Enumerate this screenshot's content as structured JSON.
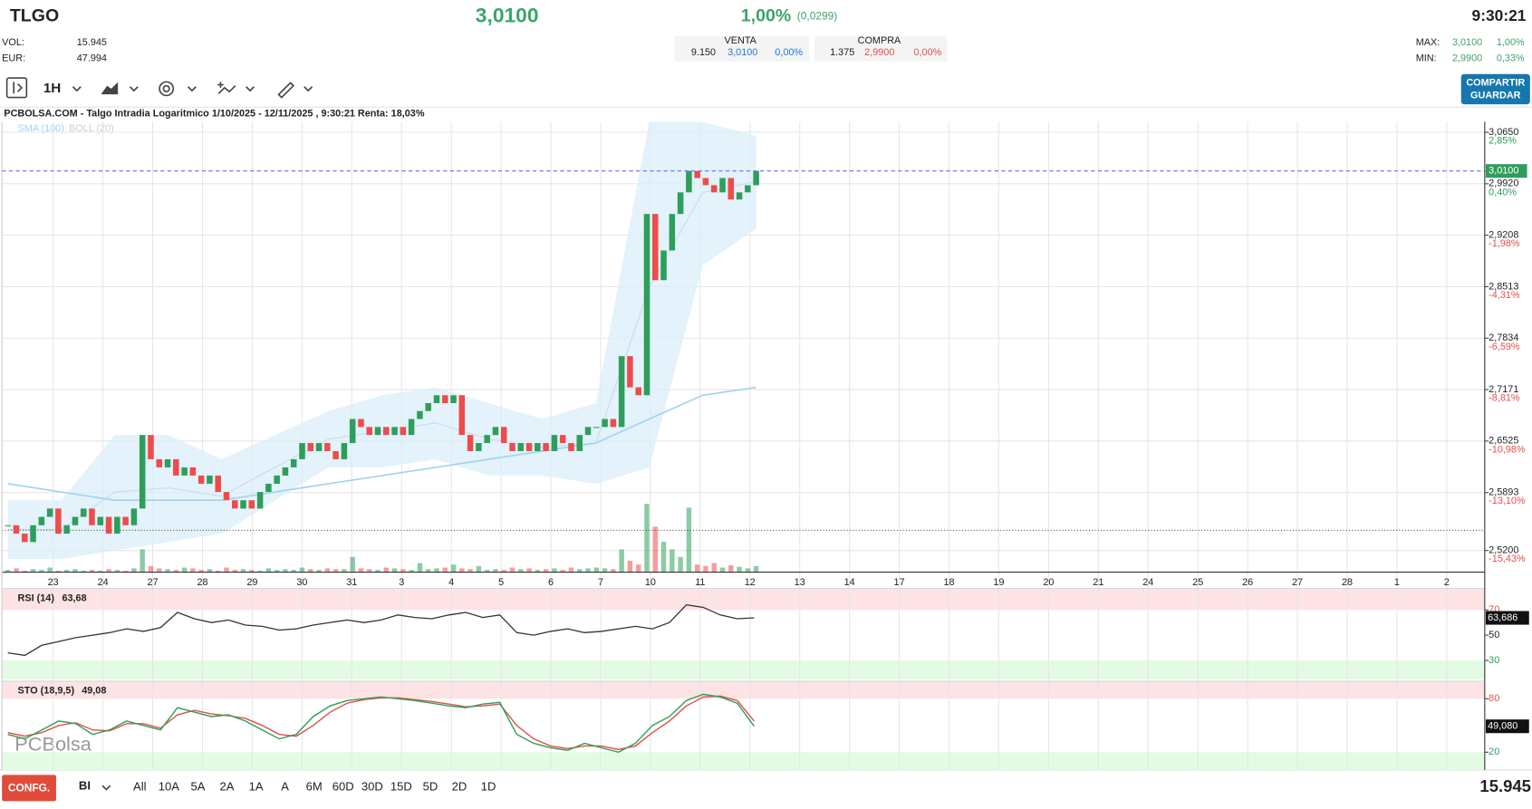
{
  "header": {
    "symbol": "TLGO",
    "price": "3,0100",
    "change_pct": "1,00%",
    "change_abs": "(0,0299)",
    "time": "9:30:21",
    "stats": [
      {
        "label": "VOL:",
        "value": "15.945"
      },
      {
        "label": "EUR:",
        "value": "47.994"
      }
    ],
    "venta": {
      "label": "VENTA",
      "volume": "9.150",
      "price": "3,0100",
      "pct": "0,00%"
    },
    "compra": {
      "label": "COMPRA",
      "volume": "1.375",
      "price": "2,9900",
      "pct": "0,00%"
    },
    "range": [
      {
        "label": "MAX:",
        "price": "3,0100",
        "pct": "1,00%"
      },
      {
        "label": "MIN:",
        "price": "2,9900",
        "pct": "0,33%"
      }
    ]
  },
  "toolbar": {
    "interval": "1H",
    "share": "COMPARTIR",
    "save": "GUARDAR"
  },
  "chart_data": {
    "type": "candlestick",
    "title": "PCBOLSA.COM - Talgo Intradia Logaritmico 1/10/2025 - 12/11/2025 , 9:30:21 Renta: 18,03%",
    "watermark": "PCBolsa",
    "legend": [
      "SMA (100)",
      "BOLL (20)"
    ],
    "up_color": "#2e9e5b",
    "down_color": "#ef4b4b",
    "sma_color": "#9fd3f0",
    "boll_color": "#d9eefa",
    "log_scale": true,
    "grid": true,
    "categories": [
      "23",
      "24",
      "27",
      "28",
      "29",
      "30",
      "31",
      "3",
      "4",
      "5",
      "6",
      "7",
      "10",
      "11",
      "12",
      "13",
      "14",
      "17",
      "18",
      "19",
      "20",
      "21",
      "24",
      "25",
      "26",
      "27",
      "28",
      "1",
      "2"
    ],
    "close": [
      2.55,
      2.54,
      2.53,
      2.55,
      2.56,
      2.57,
      2.54,
      2.55,
      2.56,
      2.57,
      2.55,
      2.56,
      2.54,
      2.56,
      2.55,
      2.57,
      2.66,
      2.63,
      2.62,
      2.63,
      2.61,
      2.62,
      2.61,
      2.6,
      2.61,
      2.59,
      2.58,
      2.57,
      2.58,
      2.57,
      2.59,
      2.6,
      2.61,
      2.62,
      2.63,
      2.65,
      2.64,
      2.65,
      2.64,
      2.63,
      2.65,
      2.68,
      2.67,
      2.66,
      2.67,
      2.66,
      2.67,
      2.66,
      2.68,
      2.69,
      2.7,
      2.71,
      2.7,
      2.71,
      2.66,
      2.64,
      2.65,
      2.66,
      2.67,
      2.65,
      2.64,
      2.65,
      2.64,
      2.65,
      2.64,
      2.66,
      2.65,
      2.64,
      2.66,
      2.67,
      2.67,
      2.68,
      2.67,
      2.76,
      2.72,
      2.71,
      2.95,
      2.86,
      2.9,
      2.95,
      2.98,
      3.01,
      3.0,
      2.99,
      2.98,
      3.0,
      2.97,
      2.98,
      2.99,
      3.01
    ],
    "volume": [
      3,
      5,
      2,
      4,
      3,
      6,
      2,
      3,
      4,
      2,
      3,
      2,
      4,
      3,
      2,
      5,
      30,
      8,
      5,
      4,
      3,
      6,
      5,
      3,
      4,
      2,
      6,
      3,
      4,
      3,
      2,
      5,
      3,
      4,
      3,
      6,
      4,
      3,
      5,
      4,
      4,
      20,
      5,
      4,
      3,
      6,
      5,
      4,
      3,
      12,
      4,
      5,
      6,
      10,
      5,
      4,
      8,
      3,
      4,
      3,
      6,
      4,
      5,
      3,
      4,
      5,
      3,
      6,
      4,
      5,
      6,
      5,
      4,
      30,
      15,
      10,
      90,
      60,
      40,
      30,
      20,
      85,
      10,
      8,
      12,
      6,
      9,
      7,
      5,
      8
    ],
    "sma100": [
      2.6,
      2.59,
      2.58,
      2.58,
      2.58,
      2.59,
      2.6,
      2.61,
      2.62,
      2.63,
      2.64,
      2.65,
      2.68,
      2.71,
      2.72
    ],
    "boll_upper": [
      2.58,
      2.58,
      2.66,
      2.66,
      2.63,
      2.66,
      2.69,
      2.71,
      2.72,
      2.7,
      2.68,
      2.7,
      3.08,
      3.08,
      3.06
    ],
    "boll_mid": [
      2.545,
      2.545,
      2.59,
      2.595,
      2.585,
      2.62,
      2.655,
      2.665,
      2.675,
      2.655,
      2.645,
      2.65,
      2.85,
      2.98,
      2.995
    ],
    "boll_lower": [
      2.51,
      2.51,
      2.52,
      2.53,
      2.54,
      2.58,
      2.62,
      2.62,
      2.63,
      2.61,
      2.61,
      2.6,
      2.62,
      2.88,
      2.93
    ],
    "reference_line": 2.544,
    "last_price": {
      "value": 3.01,
      "label": "3,0100"
    },
    "ylim": [
      2.4946,
      3.08
    ],
    "yticks": [
      {
        "value": 3.065,
        "label": "3,0650",
        "change": "2,85%"
      },
      {
        "value": 2.992,
        "label": "2,9920",
        "change": "0,40%"
      },
      {
        "value": 2.9208,
        "label": "2,9208",
        "change": "-1,98%"
      },
      {
        "value": 2.8513,
        "label": "2,8513",
        "change": "-4,31%"
      },
      {
        "value": 2.7834,
        "label": "2,7834",
        "change": "-6,59%"
      },
      {
        "value": 2.7171,
        "label": "2,7171",
        "change": "-8,81%"
      },
      {
        "value": 2.6525,
        "label": "2,6525",
        "change": "-10,98%"
      },
      {
        "value": 2.5893,
        "label": "2,5893",
        "change": "-13,10%"
      },
      {
        "value": 2.52,
        "label": "2,5200",
        "change": "-15,43%"
      }
    ],
    "rsi": {
      "label": "RSI (14)",
      "current": "63,68",
      "color": "#333",
      "values": [
        36,
        34,
        42,
        45,
        48,
        50,
        52,
        55,
        53,
        56,
        68,
        63,
        60,
        62,
        58,
        57,
        54,
        55,
        58,
        60,
        62,
        60,
        62,
        66,
        64,
        63,
        66,
        68,
        64,
        66,
        52,
        50,
        53,
        55,
        52,
        53,
        55,
        57,
        55,
        60,
        74,
        72,
        66,
        63,
        63.686
      ],
      "ylim": [
        15,
        86
      ],
      "yticks": [
        70,
        50,
        30
      ],
      "last": {
        "value": 63.686,
        "label": "63,686"
      }
    },
    "sto": {
      "label": "STO (18,9,5)",
      "current": "49,08",
      "k_color": "#2e9e5b",
      "d_color": "#e0504a",
      "k": [
        40,
        35,
        45,
        55,
        52,
        40,
        45,
        55,
        50,
        45,
        70,
        65,
        60,
        62,
        55,
        45,
        35,
        40,
        60,
        72,
        78,
        80,
        82,
        80,
        78,
        75,
        72,
        70,
        74,
        76,
        40,
        30,
        25,
        22,
        30,
        25,
        20,
        30,
        50,
        60,
        78,
        85,
        82,
        75,
        49.08
      ],
      "d": [
        42,
        38,
        42,
        50,
        53,
        45,
        44,
        52,
        52,
        47,
        62,
        67,
        63,
        61,
        58,
        50,
        40,
        38,
        50,
        65,
        75,
        79,
        81,
        81,
        79,
        77,
        74,
        71,
        72,
        74,
        50,
        35,
        27,
        24,
        27,
        27,
        23,
        27,
        42,
        55,
        72,
        82,
        83,
        78,
        55
      ],
      "ylim": [
        0,
        98.5
      ],
      "yticks": [
        80,
        20
      ],
      "last": {
        "value": 49.08,
        "label": "49,080"
      }
    }
  },
  "footer": {
    "config": "CONFG.",
    "mode": "BI",
    "periods": [
      "All",
      "10A",
      "5A",
      "2A",
      "1A",
      "A",
      "6M",
      "60D",
      "30D",
      "15D",
      "5D",
      "2D",
      "1D"
    ],
    "volume": "15.945"
  }
}
